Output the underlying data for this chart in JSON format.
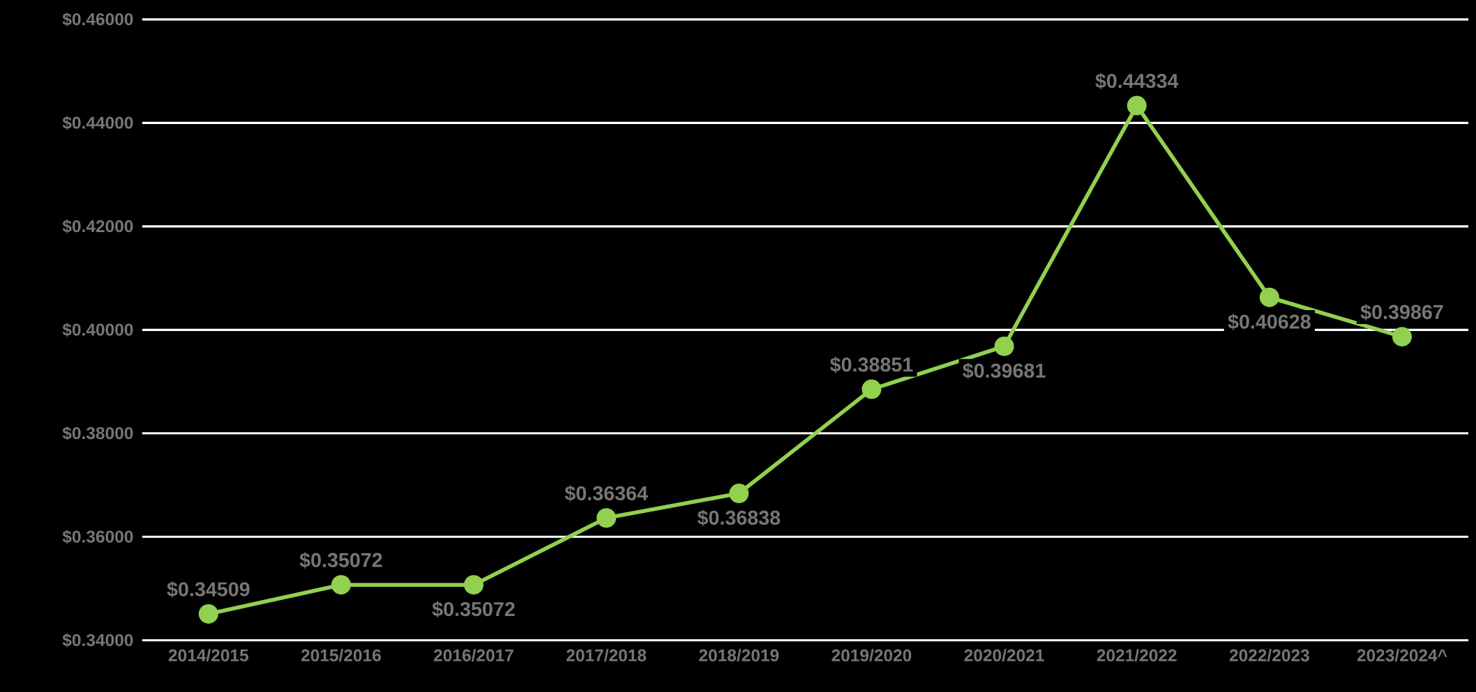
{
  "chart_data": {
    "type": "line",
    "categories": [
      "2014/2015",
      "2015/2016",
      "2016/2017",
      "2017/2018",
      "2018/2019",
      "2019/2020",
      "2020/2021",
      "2021/2022",
      "2022/2023",
      "2023/2024^"
    ],
    "series": [
      {
        "color": "#92d050",
        "values": [
          0.34509,
          0.35072,
          0.35072,
          0.36364,
          0.36838,
          0.38851,
          0.39681,
          0.44334,
          0.40628,
          0.39867
        ],
        "value_labels": [
          "$0.34509",
          "$0.35072",
          "$0.35072",
          "$0.36364",
          "$0.36838",
          "$0.38851",
          "$0.39681",
          "$0.44334",
          "$0.40628",
          "$0.39867"
        ]
      }
    ],
    "ylim": [
      0.34,
      0.46
    ],
    "yticks": [
      {
        "value": 0.34,
        "label": "$0.34000"
      },
      {
        "value": 0.36,
        "label": "$0.36000"
      },
      {
        "value": 0.38,
        "label": "$0.38000"
      },
      {
        "value": 0.4,
        "label": "$0.40000"
      },
      {
        "value": 0.42,
        "label": "$0.42000"
      },
      {
        "value": 0.44,
        "label": "$0.44000"
      },
      {
        "value": 0.46,
        "label": "$0.46000"
      }
    ],
    "grid": "y",
    "marker": "circle",
    "line_style": "solid"
  }
}
